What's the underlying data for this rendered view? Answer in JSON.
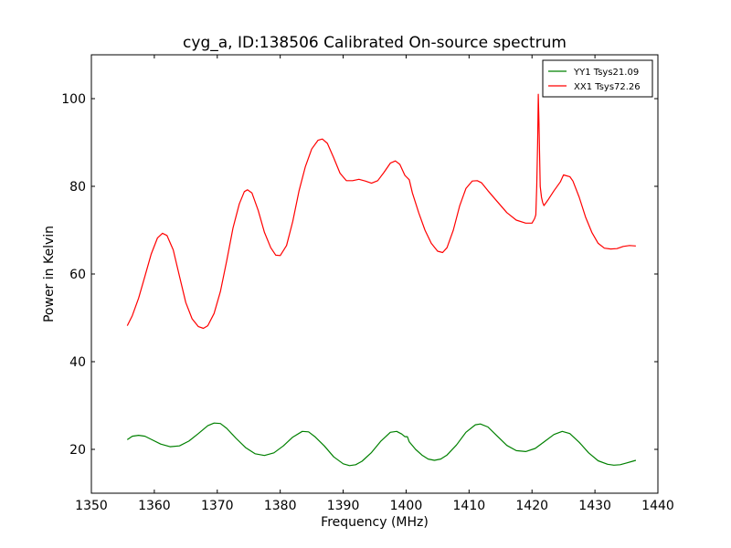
{
  "chart_data": {
    "type": "line",
    "title": "cyg_a, ID:138506 Calibrated On-source spectrum",
    "xlabel": "Frequency (MHz)",
    "ylabel": "Power in Kelvin",
    "xlim": [
      1350,
      1440
    ],
    "ylim": [
      10,
      110
    ],
    "xticks": [
      1350,
      1360,
      1370,
      1380,
      1390,
      1400,
      1410,
      1420,
      1430,
      1440
    ],
    "yticks": [
      20,
      40,
      60,
      80,
      100
    ],
    "grid": false,
    "legend_position": "top-right",
    "series": [
      {
        "name": "YY1 Tsys21.09",
        "color": "#008000",
        "points": [
          [
            1355.7,
            22.2
          ],
          [
            1356.5,
            23.0
          ],
          [
            1357.5,
            23.2
          ],
          [
            1358.5,
            23.0
          ],
          [
            1359.5,
            22.3
          ],
          [
            1361.0,
            21.2
          ],
          [
            1362.5,
            20.6
          ],
          [
            1364.0,
            20.8
          ],
          [
            1365.5,
            21.9
          ],
          [
            1367.0,
            23.6
          ],
          [
            1368.5,
            25.4
          ],
          [
            1369.5,
            26.0
          ],
          [
            1370.5,
            25.9
          ],
          [
            1371.5,
            24.8
          ],
          [
            1373.0,
            22.5
          ],
          [
            1374.5,
            20.4
          ],
          [
            1376.0,
            19.0
          ],
          [
            1377.5,
            18.6
          ],
          [
            1379.0,
            19.2
          ],
          [
            1380.5,
            20.8
          ],
          [
            1382.0,
            22.8
          ],
          [
            1383.5,
            24.1
          ],
          [
            1384.5,
            24.0
          ],
          [
            1385.5,
            22.9
          ],
          [
            1387.0,
            20.8
          ],
          [
            1388.5,
            18.3
          ],
          [
            1390.0,
            16.7
          ],
          [
            1391.0,
            16.3
          ],
          [
            1392.0,
            16.5
          ],
          [
            1393.0,
            17.3
          ],
          [
            1394.5,
            19.3
          ],
          [
            1396.0,
            21.9
          ],
          [
            1397.5,
            23.9
          ],
          [
            1398.5,
            24.1
          ],
          [
            1399.3,
            23.5
          ],
          [
            1399.8,
            22.9
          ],
          [
            1400.2,
            22.9
          ],
          [
            1400.5,
            21.7
          ],
          [
            1401.5,
            20.0
          ],
          [
            1402.5,
            18.7
          ],
          [
            1403.5,
            17.8
          ],
          [
            1404.5,
            17.5
          ],
          [
            1405.5,
            17.8
          ],
          [
            1406.5,
            18.7
          ],
          [
            1408.0,
            21.0
          ],
          [
            1409.5,
            23.9
          ],
          [
            1411.0,
            25.6
          ],
          [
            1411.8,
            25.8
          ],
          [
            1413.0,
            25.1
          ],
          [
            1414.5,
            23.0
          ],
          [
            1416.0,
            20.9
          ],
          [
            1417.5,
            19.7
          ],
          [
            1419.0,
            19.5
          ],
          [
            1420.5,
            20.2
          ],
          [
            1422.0,
            21.8
          ],
          [
            1423.5,
            23.4
          ],
          [
            1424.8,
            24.1
          ],
          [
            1426.0,
            23.6
          ],
          [
            1427.5,
            21.6
          ],
          [
            1429.0,
            19.2
          ],
          [
            1430.5,
            17.4
          ],
          [
            1432.0,
            16.6
          ],
          [
            1433.0,
            16.4
          ],
          [
            1434.0,
            16.5
          ],
          [
            1435.0,
            16.9
          ],
          [
            1436.0,
            17.3
          ],
          [
            1436.5,
            17.5
          ]
        ]
      },
      {
        "name": "XX1 Tsys72.26",
        "color": "#ff0000",
        "points": [
          [
            1355.7,
            48.2
          ],
          [
            1356.5,
            50.5
          ],
          [
            1357.5,
            54.5
          ],
          [
            1358.5,
            59.5
          ],
          [
            1359.5,
            64.5
          ],
          [
            1360.5,
            68.2
          ],
          [
            1361.3,
            69.3
          ],
          [
            1362.0,
            68.8
          ],
          [
            1363.0,
            65.5
          ],
          [
            1364.0,
            59.5
          ],
          [
            1365.0,
            53.5
          ],
          [
            1366.0,
            49.8
          ],
          [
            1367.0,
            48.0
          ],
          [
            1367.8,
            47.6
          ],
          [
            1368.5,
            48.2
          ],
          [
            1369.5,
            51.0
          ],
          [
            1370.5,
            56.0
          ],
          [
            1371.5,
            63.0
          ],
          [
            1372.5,
            70.5
          ],
          [
            1373.5,
            76.0
          ],
          [
            1374.3,
            78.8
          ],
          [
            1374.8,
            79.2
          ],
          [
            1375.5,
            78.5
          ],
          [
            1376.5,
            74.5
          ],
          [
            1377.5,
            69.5
          ],
          [
            1378.5,
            66.0
          ],
          [
            1379.3,
            64.3
          ],
          [
            1380.0,
            64.2
          ],
          [
            1381.0,
            66.5
          ],
          [
            1382.0,
            72.0
          ],
          [
            1383.0,
            79.0
          ],
          [
            1384.0,
            84.5
          ],
          [
            1385.0,
            88.5
          ],
          [
            1386.0,
            90.5
          ],
          [
            1386.7,
            90.8
          ],
          [
            1387.5,
            89.8
          ],
          [
            1388.5,
            86.5
          ],
          [
            1389.5,
            83.0
          ],
          [
            1390.5,
            81.3
          ],
          [
            1391.5,
            81.3
          ],
          [
            1392.5,
            81.6
          ],
          [
            1393.5,
            81.2
          ],
          [
            1394.5,
            80.7
          ],
          [
            1395.5,
            81.3
          ],
          [
            1396.5,
            83.2
          ],
          [
            1397.5,
            85.3
          ],
          [
            1398.3,
            85.8
          ],
          [
            1399.0,
            85.0
          ],
          [
            1399.8,
            82.5
          ],
          [
            1400.5,
            81.5
          ],
          [
            1401.0,
            78.5
          ],
          [
            1402.0,
            74.0
          ],
          [
            1403.0,
            70.0
          ],
          [
            1404.0,
            67.0
          ],
          [
            1405.0,
            65.2
          ],
          [
            1405.8,
            64.9
          ],
          [
            1406.5,
            66.0
          ],
          [
            1407.5,
            70.0
          ],
          [
            1408.5,
            75.5
          ],
          [
            1409.5,
            79.5
          ],
          [
            1410.5,
            81.2
          ],
          [
            1411.3,
            81.3
          ],
          [
            1412.0,
            80.8
          ],
          [
            1413.0,
            79.0
          ],
          [
            1414.5,
            76.5
          ],
          [
            1416.0,
            74.0
          ],
          [
            1417.5,
            72.3
          ],
          [
            1419.0,
            71.6
          ],
          [
            1420.0,
            71.6
          ],
          [
            1420.4,
            72.6
          ],
          [
            1420.6,
            73.5
          ],
          [
            1420.75,
            80.0
          ],
          [
            1420.9,
            90.0
          ],
          [
            1421.0,
            101.0
          ],
          [
            1421.1,
            95.0
          ],
          [
            1421.3,
            80.0
          ],
          [
            1421.5,
            77.5
          ],
          [
            1421.7,
            76.3
          ],
          [
            1421.9,
            75.6
          ],
          [
            1422.5,
            76.8
          ],
          [
            1423.5,
            79.0
          ],
          [
            1424.5,
            81.0
          ],
          [
            1425.0,
            82.6
          ],
          [
            1425.5,
            82.4
          ],
          [
            1426.0,
            82.2
          ],
          [
            1426.5,
            81.2
          ],
          [
            1427.5,
            77.5
          ],
          [
            1428.5,
            73.0
          ],
          [
            1429.5,
            69.5
          ],
          [
            1430.5,
            67.0
          ],
          [
            1431.5,
            65.9
          ],
          [
            1432.5,
            65.7
          ],
          [
            1433.5,
            65.8
          ],
          [
            1434.5,
            66.3
          ],
          [
            1435.5,
            66.5
          ],
          [
            1436.5,
            66.4
          ]
        ]
      }
    ]
  }
}
